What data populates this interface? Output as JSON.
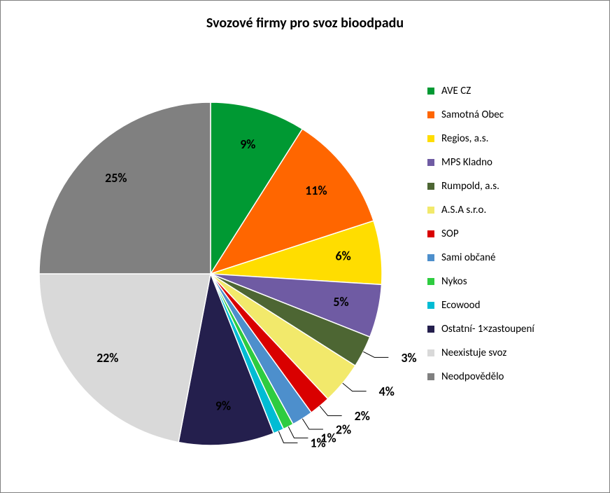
{
  "chart": {
    "type": "pie",
    "title": "Svozové firmy pro svoz bioodpadu",
    "title_fontsize": 20,
    "title_fontweight": "bold",
    "background_color": "#ffffff",
    "border_color": "#808080",
    "label_fontsize": 18,
    "label_fontweight": "bold",
    "legend_fontsize": 15,
    "legend_swatch_size": 10,
    "slices": [
      {
        "label": "AVE CZ",
        "percent": 9,
        "display": "9%",
        "color": "#009933"
      },
      {
        "label": "Samotná Obec",
        "percent": 11,
        "display": "11%",
        "color": "#ff6600"
      },
      {
        "label": "Regios, a.s.",
        "percent": 6,
        "display": "6%",
        "color": "#ffdd00"
      },
      {
        "label": "MPS Kladno",
        "percent": 5,
        "display": "5%",
        "color": "#6f5ba3"
      },
      {
        "label": "Rumpold, a.s.",
        "percent": 3,
        "display": "3%",
        "color": "#4d6633"
      },
      {
        "label": "A.S.A s.r.o.",
        "percent": 4,
        "display": "4%",
        "color": "#f2e96b"
      },
      {
        "label": "SOP",
        "percent": 2,
        "display": "2%",
        "color": "#d90000"
      },
      {
        "label": "Sami občané",
        "percent": 2,
        "display": "2%",
        "color": "#4d8fcc"
      },
      {
        "label": "Nykos",
        "percent": 1,
        "display": "1%",
        "color": "#2ecc40"
      },
      {
        "label": "Ecowood",
        "percent": 1,
        "display": "1%",
        "color": "#00bcd4"
      },
      {
        "label": "Ostatní- 1×zastoupení",
        "percent": 9,
        "display": "9%",
        "color": "#241f4d"
      },
      {
        "label": "Neexistuje svoz",
        "percent": 22,
        "display": "22%",
        "color": "#d9d9d9"
      },
      {
        "label": "Neodpovědělo",
        "percent": 25,
        "display": "25%",
        "color": "#808080"
      }
    ]
  }
}
